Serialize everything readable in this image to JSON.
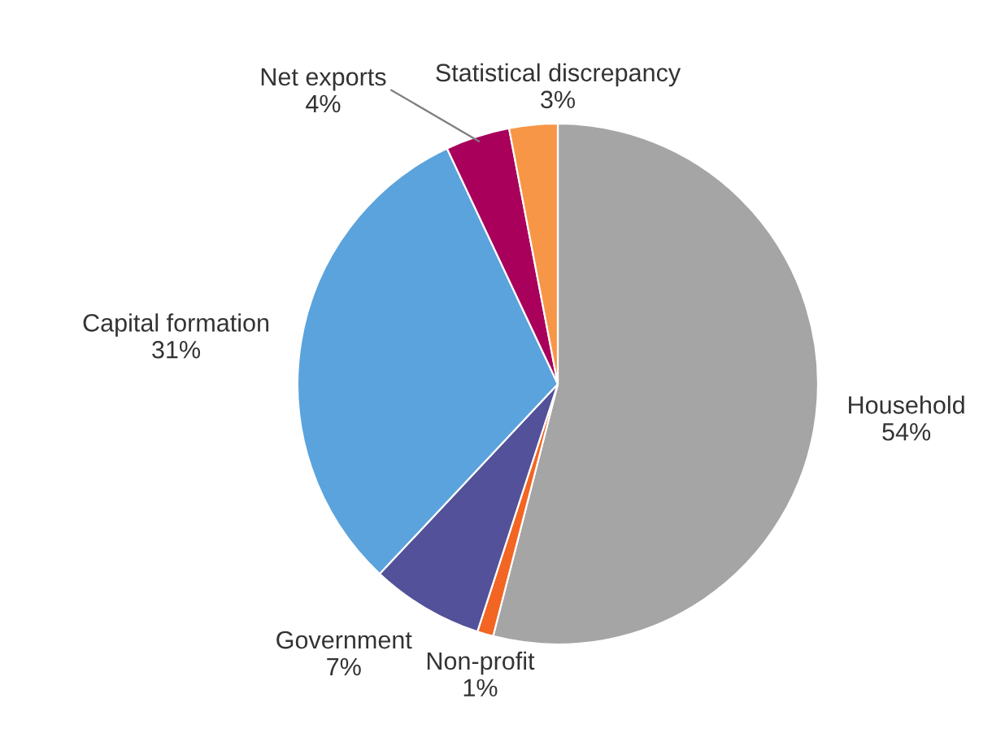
{
  "chart_data": {
    "type": "pie",
    "categories": [
      "Household",
      "Non-profit",
      "Government",
      "Capital formation",
      "Net exports",
      "Statistical discrepancy"
    ],
    "values": [
      54,
      1,
      7,
      31,
      4,
      3
    ],
    "colors": [
      "#a5a5a5",
      "#f26522",
      "#525199",
      "#5ba3dc",
      "#a8005b",
      "#f79646"
    ],
    "value_labels": [
      "54%",
      "1%",
      "7%",
      "31%",
      "4%",
      "3%"
    ]
  }
}
